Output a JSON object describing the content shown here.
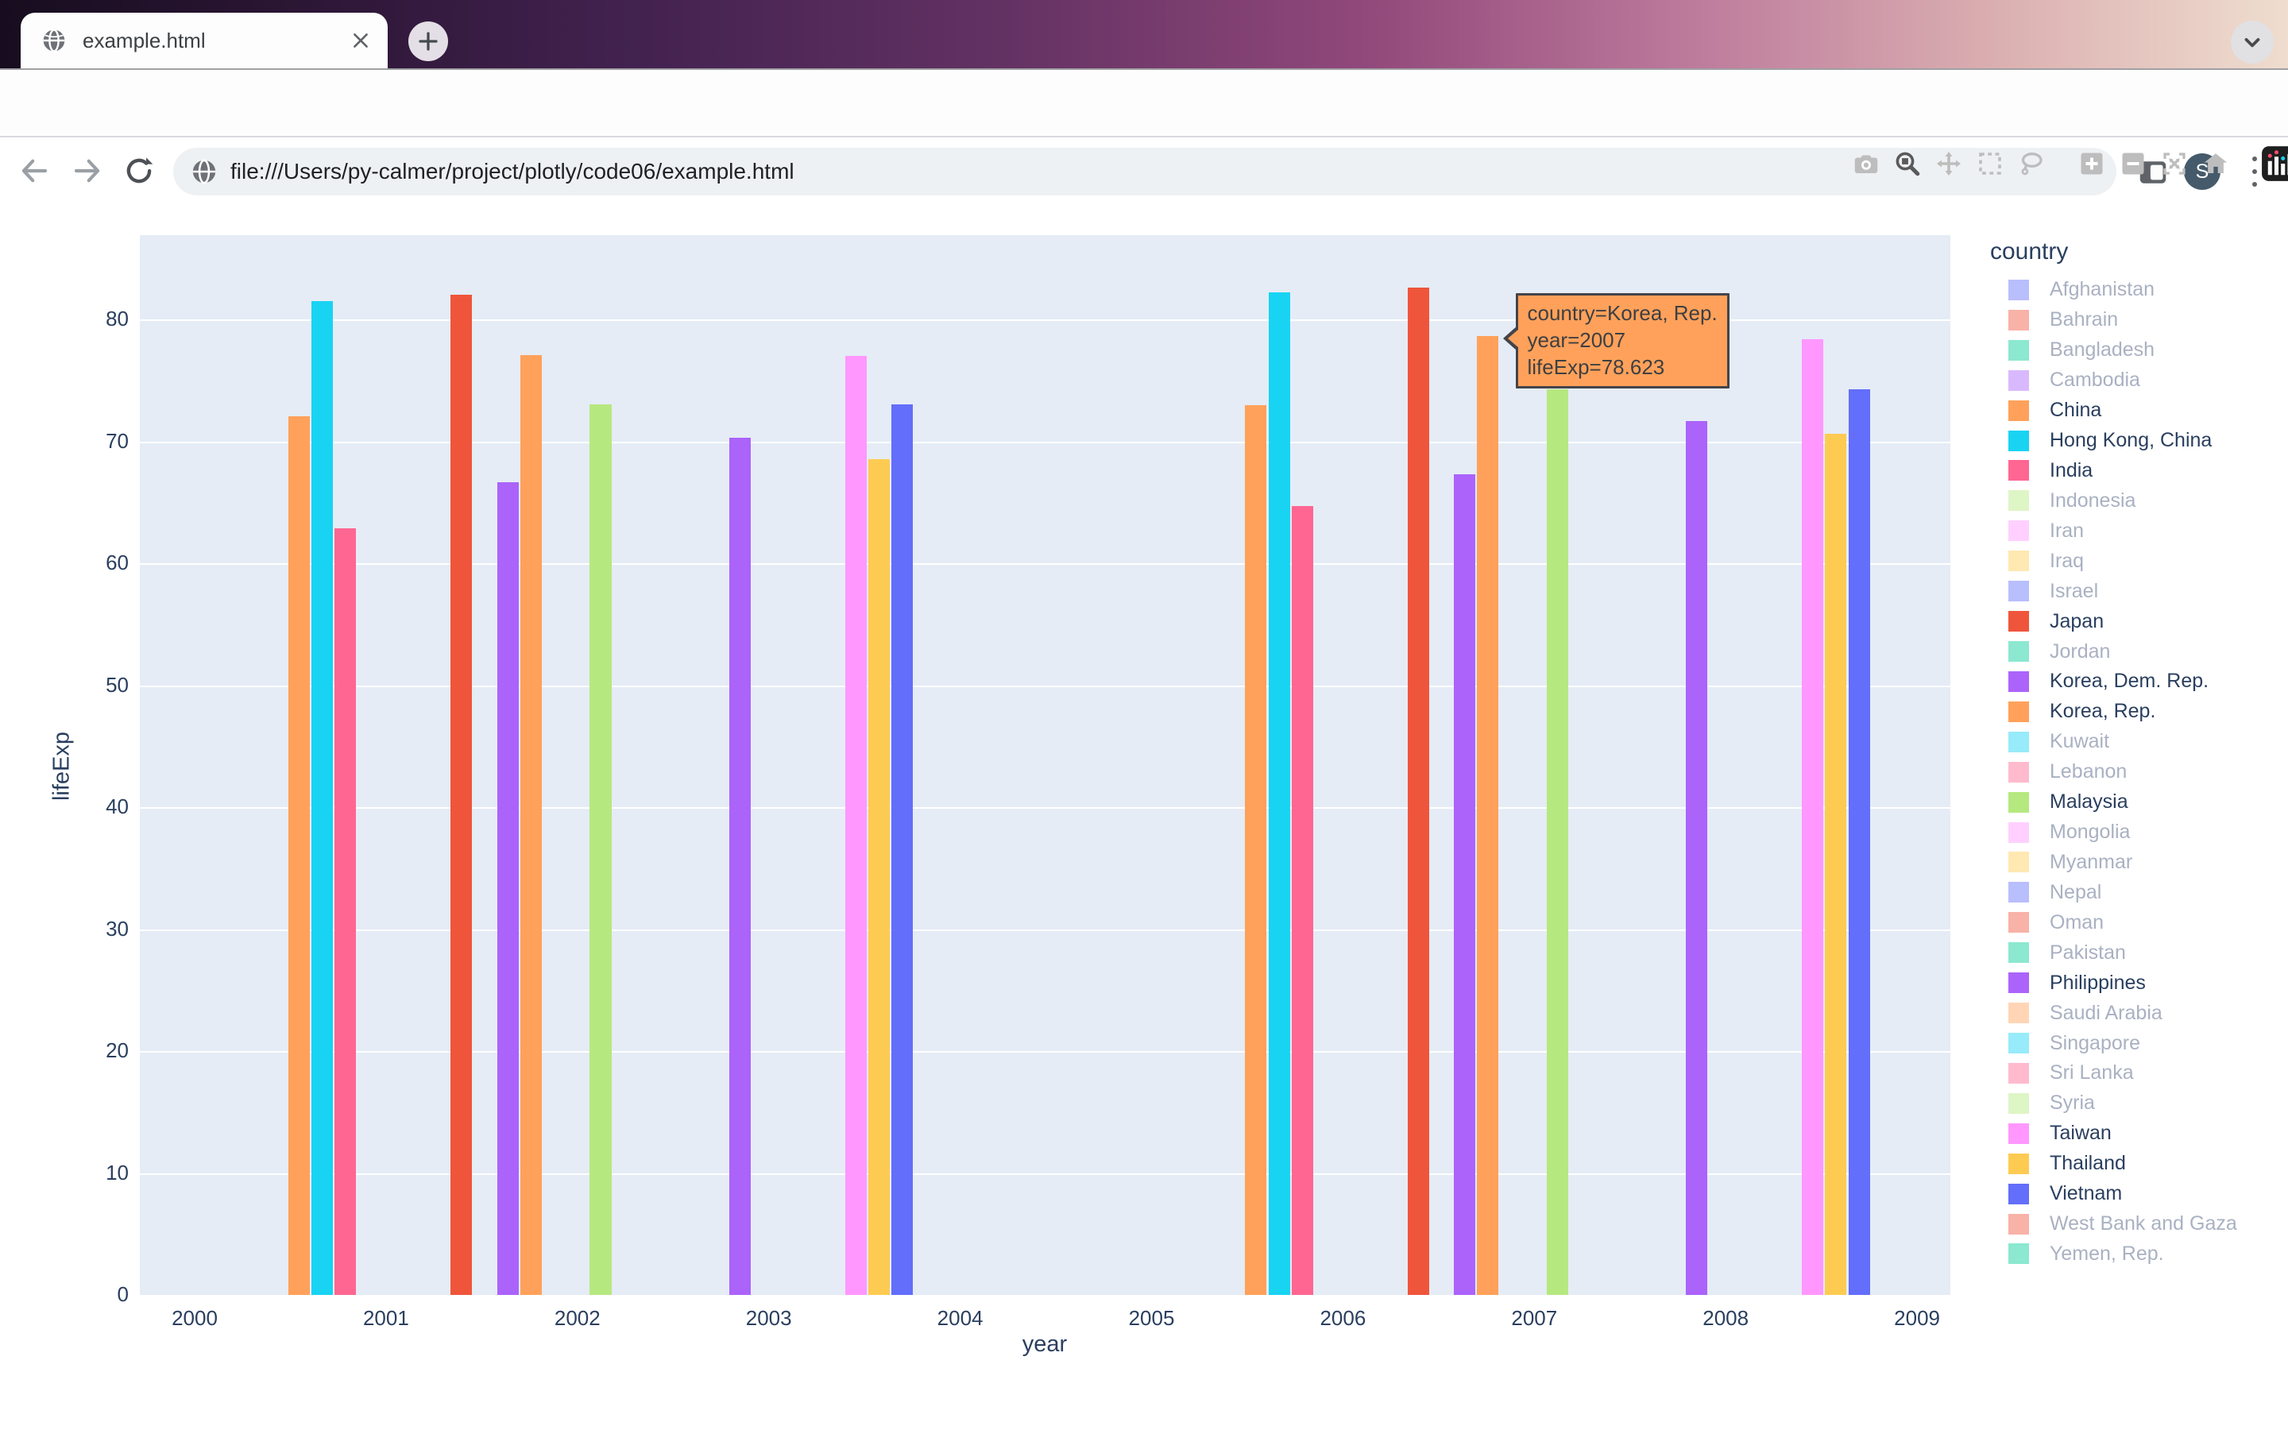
{
  "browser": {
    "tab_title": "example.html",
    "url": "file:///Users/py-calmer/project/plotly/code06/example.html",
    "avatar_initial": "S"
  },
  "modebar_icons": [
    "camera-icon",
    "zoom-icon",
    "pan-icon",
    "box-select-icon",
    "lasso-icon",
    "zoom-in-icon",
    "zoom-out-icon",
    "autoscale-icon",
    "reset-axes-home-icon",
    "plotly-logo-icon"
  ],
  "chart_data": {
    "type": "bar",
    "title": "",
    "xlabel": "year",
    "ylabel": "lifeExp",
    "x_ticks": [
      2000,
      2001,
      2002,
      2003,
      2004,
      2005,
      2006,
      2007,
      2008,
      2009
    ],
    "y_ticks": [
      0,
      10,
      20,
      30,
      40,
      50,
      60,
      70,
      80
    ],
    "x_range": [
      1999.7,
      2009.16
    ],
    "y_range": [
      0,
      86.9
    ],
    "grid": "horizontal-only",
    "plot_bg": "#e5ecf6",
    "gridline_color": "#ffffff",
    "legend_title": "country",
    "legend_position": "right",
    "bar_group_years": [
      2002,
      2007
    ],
    "group_span_years": 4,
    "palette": [
      "#636efa",
      "#EF553B",
      "#00cc96",
      "#ab63fa",
      "#FFA15A",
      "#19d3f3",
      "#FF6692",
      "#B6E880",
      "#FF97FF",
      "#FECB52"
    ],
    "countries": [
      {
        "name": "Afghanistan",
        "active": false
      },
      {
        "name": "Bahrain",
        "active": false
      },
      {
        "name": "Bangladesh",
        "active": false
      },
      {
        "name": "Cambodia",
        "active": false
      },
      {
        "name": "China",
        "active": true
      },
      {
        "name": "Hong Kong, China",
        "active": true
      },
      {
        "name": "India",
        "active": true
      },
      {
        "name": "Indonesia",
        "active": false
      },
      {
        "name": "Iran",
        "active": false
      },
      {
        "name": "Iraq",
        "active": false
      },
      {
        "name": "Israel",
        "active": false
      },
      {
        "name": "Japan",
        "active": true
      },
      {
        "name": "Jordan",
        "active": false
      },
      {
        "name": "Korea, Dem. Rep.",
        "active": true
      },
      {
        "name": "Korea, Rep.",
        "active": true
      },
      {
        "name": "Kuwait",
        "active": false
      },
      {
        "name": "Lebanon",
        "active": false
      },
      {
        "name": "Malaysia",
        "active": true
      },
      {
        "name": "Mongolia",
        "active": false
      },
      {
        "name": "Myanmar",
        "active": false
      },
      {
        "name": "Nepal",
        "active": false
      },
      {
        "name": "Oman",
        "active": false
      },
      {
        "name": "Pakistan",
        "active": false
      },
      {
        "name": "Philippines",
        "active": true
      },
      {
        "name": "Saudi Arabia",
        "active": false
      },
      {
        "name": "Singapore",
        "active": false
      },
      {
        "name": "Sri Lanka",
        "active": false
      },
      {
        "name": "Syria",
        "active": false
      },
      {
        "name": "Taiwan",
        "active": true
      },
      {
        "name": "Thailand",
        "active": true
      },
      {
        "name": "Vietnam",
        "active": true
      },
      {
        "name": "West Bank and Gaza",
        "active": false
      },
      {
        "name": "Yemen, Rep.",
        "active": false
      }
    ],
    "series": [
      {
        "name": "China",
        "values": {
          "2002": 72.028,
          "2007": 72.961
        }
      },
      {
        "name": "Hong Kong, China",
        "values": {
          "2002": 81.495,
          "2007": 82.208
        }
      },
      {
        "name": "India",
        "values": {
          "2002": 62.879,
          "2007": 64.698
        }
      },
      {
        "name": "Japan",
        "values": {
          "2002": 82.0,
          "2007": 82.603
        }
      },
      {
        "name": "Korea, Dem. Rep.",
        "values": {
          "2002": 66.662,
          "2007": 67.297
        }
      },
      {
        "name": "Korea, Rep.",
        "values": {
          "2002": 77.045,
          "2007": 78.623
        }
      },
      {
        "name": "Malaysia",
        "values": {
          "2002": 73.044,
          "2007": 74.241
        }
      },
      {
        "name": "Philippines",
        "values": {
          "2002": 70.303,
          "2007": 71.688
        }
      },
      {
        "name": "Taiwan",
        "values": {
          "2002": 76.99,
          "2007": 78.4
        }
      },
      {
        "name": "Thailand",
        "values": {
          "2002": 68.564,
          "2007": 70.616
        }
      },
      {
        "name": "Vietnam",
        "values": {
          "2002": 73.017,
          "2007": 74.249
        }
      }
    ]
  },
  "tooltip": {
    "country": "Korea, Rep.",
    "year": 2007,
    "value": 78.623,
    "lines": [
      "country=Korea, Rep.",
      "year=2007",
      "lifeExp=78.623"
    ],
    "bg": "#ffa15a"
  }
}
